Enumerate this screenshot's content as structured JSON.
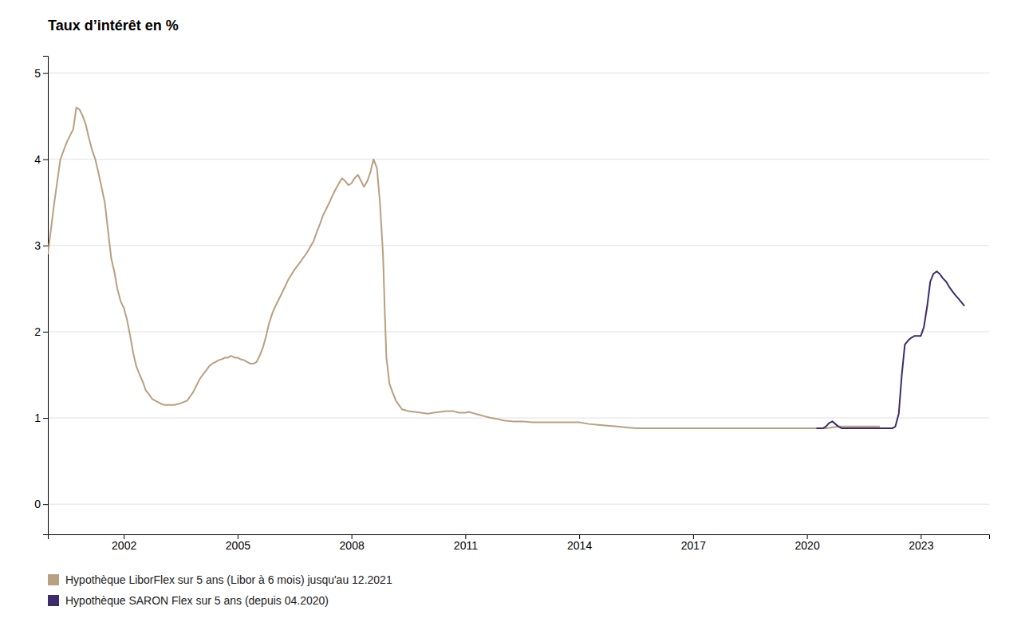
{
  "chart_data": {
    "type": "line",
    "title": "Taux d’intérêt en %",
    "xlim": [
      2000.0,
      2024.8
    ],
    "xticks": [
      2002,
      2005,
      2008,
      2011,
      2014,
      2017,
      2020,
      2023
    ],
    "ylim": [
      -0.35,
      5.2
    ],
    "yticks": [
      0,
      1,
      2,
      3,
      4,
      5
    ],
    "grid": true,
    "legend": "bottom",
    "series": [
      {
        "name": "Hypothèque LiborFlex sur 5 ans (Libor à 6 mois) jusqu'au 12.2021",
        "color": "#b8a080",
        "x": [
          2000.0,
          2000.17,
          2000.33,
          2000.5,
          2000.67,
          2000.75,
          2000.83,
          2000.92,
          2001.0,
          2001.08,
          2001.17,
          2001.25,
          2001.33,
          2001.5,
          2001.67,
          2001.75,
          2001.83,
          2001.92,
          2002.0,
          2002.08,
          2002.17,
          2002.25,
          2002.33,
          2002.42,
          2002.5,
          2002.58,
          2002.67,
          2002.75,
          2002.83,
          2002.92,
          2003.0,
          2003.08,
          2003.17,
          2003.25,
          2003.33,
          2003.5,
          2003.67,
          2003.75,
          2003.83,
          2003.92,
          2004.0,
          2004.08,
          2004.17,
          2004.25,
          2004.33,
          2004.42,
          2004.5,
          2004.58,
          2004.67,
          2004.75,
          2004.83,
          2004.92,
          2005.0,
          2005.08,
          2005.17,
          2005.25,
          2005.33,
          2005.42,
          2005.5,
          2005.58,
          2005.67,
          2005.75,
          2005.83,
          2005.92,
          2006.0,
          2006.17,
          2006.33,
          2006.5,
          2006.67,
          2006.83,
          2007.0,
          2007.08,
          2007.17,
          2007.25,
          2007.33,
          2007.42,
          2007.5,
          2007.58,
          2007.67,
          2007.75,
          2007.83,
          2007.92,
          2008.0,
          2008.08,
          2008.17,
          2008.25,
          2008.33,
          2008.42,
          2008.5,
          2008.58,
          2008.67,
          2008.75,
          2008.83,
          2008.88,
          2008.92,
          2009.0,
          2009.08,
          2009.17,
          2009.25,
          2009.33,
          2009.5,
          2009.67,
          2009.83,
          2010.0,
          2010.17,
          2010.33,
          2010.5,
          2010.67,
          2010.83,
          2011.0,
          2011.08,
          2011.17,
          2011.25,
          2011.33,
          2011.5,
          2011.67,
          2011.83,
          2012.0,
          2012.25,
          2012.5,
          2012.75,
          2013.0,
          2013.25,
          2013.5,
          2013.75,
          2014.0,
          2014.25,
          2014.5,
          2014.75,
          2015.0,
          2015.25,
          2015.5,
          2015.75,
          2016.0,
          2016.25,
          2016.5,
          2016.75,
          2017.0,
          2017.25,
          2017.5,
          2017.75,
          2018.0,
          2018.25,
          2018.5,
          2018.75,
          2019.0,
          2019.25,
          2019.5,
          2019.75,
          2020.0,
          2020.25,
          2020.5,
          2020.67,
          2020.83,
          2021.0,
          2021.25,
          2021.5,
          2021.75,
          2021.92
        ],
        "values": [
          2.9,
          3.5,
          4.0,
          4.2,
          4.35,
          4.6,
          4.58,
          4.5,
          4.4,
          4.25,
          4.1,
          4.0,
          3.85,
          3.5,
          2.85,
          2.7,
          2.5,
          2.35,
          2.28,
          2.15,
          1.95,
          1.75,
          1.6,
          1.5,
          1.42,
          1.32,
          1.27,
          1.22,
          1.2,
          1.18,
          1.16,
          1.15,
          1.15,
          1.15,
          1.15,
          1.17,
          1.2,
          1.25,
          1.3,
          1.38,
          1.45,
          1.5,
          1.55,
          1.6,
          1.63,
          1.65,
          1.67,
          1.68,
          1.7,
          1.7,
          1.72,
          1.7,
          1.7,
          1.68,
          1.67,
          1.65,
          1.63,
          1.63,
          1.65,
          1.72,
          1.82,
          1.95,
          2.1,
          2.22,
          2.3,
          2.45,
          2.6,
          2.72,
          2.82,
          2.92,
          3.05,
          3.15,
          3.25,
          3.35,
          3.42,
          3.5,
          3.58,
          3.65,
          3.72,
          3.78,
          3.75,
          3.7,
          3.72,
          3.78,
          3.82,
          3.75,
          3.68,
          3.75,
          3.85,
          4.0,
          3.9,
          3.5,
          2.9,
          2.2,
          1.7,
          1.4,
          1.3,
          1.2,
          1.15,
          1.1,
          1.08,
          1.07,
          1.06,
          1.05,
          1.06,
          1.07,
          1.08,
          1.08,
          1.06,
          1.06,
          1.07,
          1.06,
          1.05,
          1.04,
          1.02,
          1.0,
          0.99,
          0.97,
          0.96,
          0.96,
          0.95,
          0.95,
          0.95,
          0.95,
          0.95,
          0.95,
          0.93,
          0.92,
          0.91,
          0.9,
          0.89,
          0.88,
          0.88,
          0.88,
          0.88,
          0.88,
          0.88,
          0.88,
          0.88,
          0.88,
          0.88,
          0.88,
          0.88,
          0.88,
          0.88,
          0.88,
          0.88,
          0.88,
          0.88,
          0.88,
          0.88,
          0.88,
          0.89,
          0.9,
          0.9,
          0.9,
          0.9,
          0.9,
          0.9
        ]
      },
      {
        "name": "Hypothèque SARON Flex sur 5 ans (depuis 04.2020)",
        "color": "#3d2b6b",
        "x": [
          2020.25,
          2020.42,
          2020.5,
          2020.58,
          2020.67,
          2020.75,
          2020.83,
          2020.92,
          2021.0,
          2021.17,
          2021.33,
          2021.5,
          2021.67,
          2021.83,
          2022.0,
          2022.17,
          2022.25,
          2022.33,
          2022.42,
          2022.5,
          2022.58,
          2022.67,
          2022.75,
          2022.83,
          2022.92,
          2023.0,
          2023.08,
          2023.17,
          2023.25,
          2023.33,
          2023.42,
          2023.5,
          2023.58,
          2023.67,
          2023.75,
          2023.83,
          2023.92,
          2024.0,
          2024.15
        ],
        "values": [
          0.88,
          0.88,
          0.9,
          0.94,
          0.96,
          0.93,
          0.9,
          0.88,
          0.88,
          0.88,
          0.88,
          0.88,
          0.88,
          0.88,
          0.88,
          0.88,
          0.88,
          0.9,
          1.05,
          1.5,
          1.85,
          1.9,
          1.93,
          1.95,
          1.95,
          1.95,
          2.05,
          2.3,
          2.58,
          2.67,
          2.7,
          2.67,
          2.62,
          2.58,
          2.52,
          2.47,
          2.42,
          2.38,
          2.3
        ]
      }
    ]
  }
}
